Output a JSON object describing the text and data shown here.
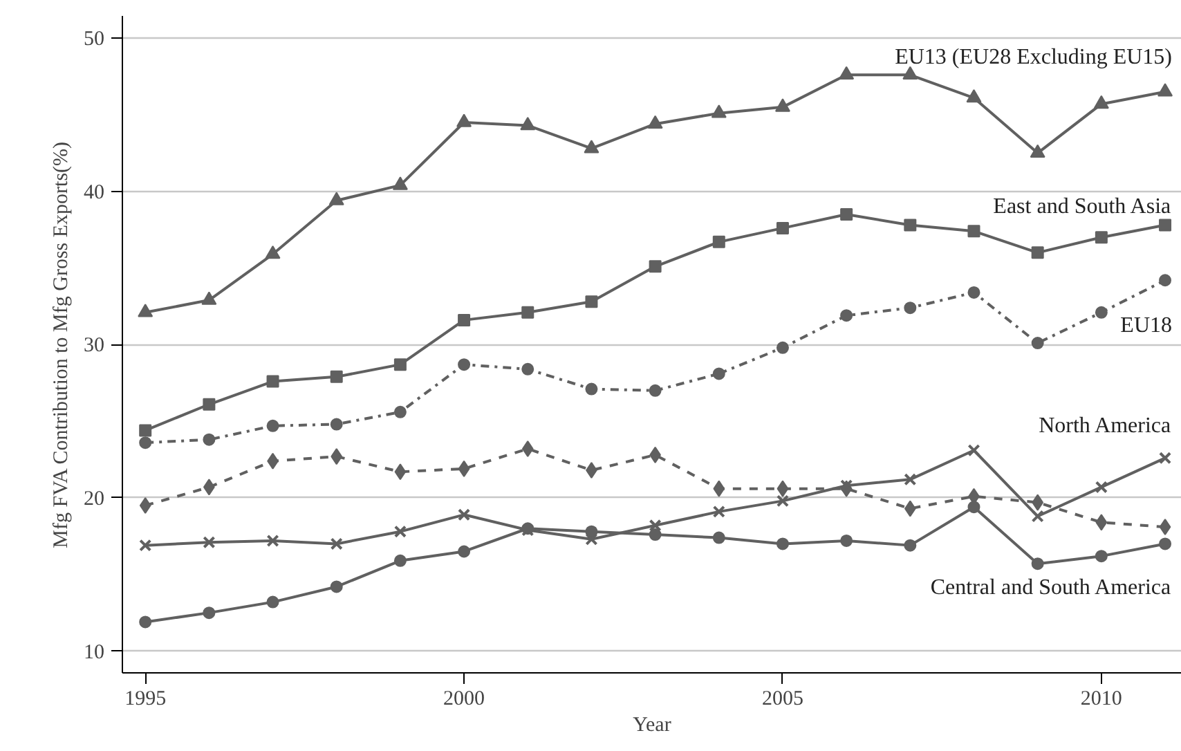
{
  "chart_data": {
    "type": "line",
    "xlabel": "Year",
    "ylabel": "Mfg FVA Contribution to Mfg Gross Exports(%)",
    "x": [
      1995,
      1996,
      1997,
      1998,
      1999,
      2000,
      2001,
      2002,
      2003,
      2004,
      2005,
      2006,
      2007,
      2008,
      2009,
      2010,
      2011
    ],
    "xlim": [
      1994.64,
      2011.26
    ],
    "xticks": [
      1995,
      2000,
      2005,
      2010
    ],
    "ylim": [
      8.58,
      51.45
    ],
    "yticks": [
      10,
      20,
      30,
      40,
      50
    ],
    "grid": "y",
    "legend": false,
    "line_style": "solid",
    "series": [
      {
        "name": "EU13 (EU28 Excluding EU15)",
        "color": "#606060",
        "marker": "triangle",
        "values": [
          32.1,
          32.9,
          35.9,
          39.4,
          40.4,
          44.5,
          44.3,
          42.8,
          44.4,
          45.1,
          45.5,
          47.6,
          47.6,
          46.1,
          42.5,
          45.7,
          46.5
        ]
      },
      {
        "name": "East and South Asia",
        "color": "#606060",
        "marker": "square",
        "values": [
          24.4,
          26.1,
          27.6,
          27.9,
          28.7,
          31.6,
          32.1,
          32.8,
          35.1,
          36.7,
          37.6,
          38.5,
          37.8,
          37.4,
          36.0,
          37.0,
          37.8
        ]
      },
      {
        "name": "EU18",
        "color": "#606060",
        "marker": "circle",
        "line_style": "dashdot",
        "values": [
          23.6,
          23.8,
          24.7,
          24.8,
          25.6,
          28.7,
          28.4,
          27.1,
          27.0,
          28.1,
          29.8,
          31.9,
          32.4,
          33.4,
          30.1,
          32.1,
          34.2
        ]
      },
      {
        "color": "#606060",
        "marker": "diamond",
        "line_style": "dashed",
        "values": [
          19.5,
          20.7,
          22.4,
          22.7,
          21.7,
          21.9,
          23.2,
          21.8,
          22.8,
          20.6,
          20.6,
          20.6,
          19.3,
          20.1,
          19.7,
          18.4,
          18.1
        ]
      },
      {
        "name": "North America",
        "color": "#606060",
        "marker": "x",
        "values": [
          16.9,
          17.1,
          17.2,
          17.0,
          17.8,
          18.9,
          17.9,
          17.3,
          18.2,
          19.1,
          19.8,
          20.8,
          21.2,
          23.1,
          18.8,
          20.7,
          22.6
        ]
      },
      {
        "name": "Central and South America",
        "color": "#606060",
        "marker": "circle",
        "values": [
          11.9,
          12.5,
          13.2,
          14.2,
          15.9,
          16.5,
          18.0,
          17.8,
          17.6,
          17.4,
          17.0,
          17.2,
          16.9,
          19.4,
          15.7,
          16.2,
          17.0
        ]
      }
    ]
  }
}
